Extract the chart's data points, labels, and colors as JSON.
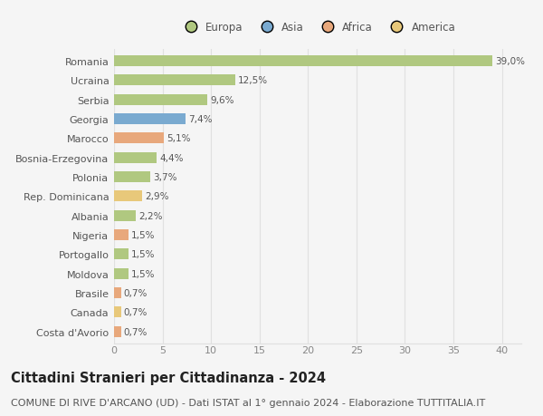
{
  "categories": [
    "Costa d'Avorio",
    "Canada",
    "Brasile",
    "Moldova",
    "Portogallo",
    "Nigeria",
    "Albania",
    "Rep. Dominicana",
    "Polonia",
    "Bosnia-Erzegovina",
    "Marocco",
    "Georgia",
    "Serbia",
    "Ucraina",
    "Romania"
  ],
  "values": [
    0.7,
    0.7,
    0.7,
    1.5,
    1.5,
    1.5,
    2.2,
    2.9,
    3.7,
    4.4,
    5.1,
    7.4,
    9.6,
    12.5,
    39.0
  ],
  "labels": [
    "0,7%",
    "0,7%",
    "0,7%",
    "1,5%",
    "1,5%",
    "1,5%",
    "2,2%",
    "2,9%",
    "3,7%",
    "4,4%",
    "5,1%",
    "7,4%",
    "9,6%",
    "12,5%",
    "39,0%"
  ],
  "colors": [
    "#e8a87c",
    "#e8c87a",
    "#e8a87c",
    "#b0c880",
    "#b0c880",
    "#e8a87c",
    "#b0c880",
    "#e8c87a",
    "#b0c880",
    "#b0c880",
    "#e8a87c",
    "#7aaad0",
    "#b0c880",
    "#b0c880",
    "#b0c880"
  ],
  "legend_labels": [
    "Europa",
    "Asia",
    "Africa",
    "America"
  ],
  "legend_colors": [
    "#b0c880",
    "#7aaad0",
    "#e8a87c",
    "#e8c87a"
  ],
  "title": "Cittadini Stranieri per Cittadinanza - 2024",
  "subtitle": "COMUNE DI RIVE D'ARCANO (UD) - Dati ISTAT al 1° gennaio 2024 - Elaborazione TUTTITALIA.IT",
  "xlim": [
    0,
    42
  ],
  "xticks": [
    0,
    5,
    10,
    15,
    20,
    25,
    30,
    35,
    40
  ],
  "bg_color": "#f5f5f5",
  "grid_color": "#e0e0e0",
  "bar_height": 0.55,
  "title_fontsize": 10.5,
  "subtitle_fontsize": 8,
  "label_fontsize": 7.5,
  "tick_fontsize": 8,
  "legend_fontsize": 8.5
}
